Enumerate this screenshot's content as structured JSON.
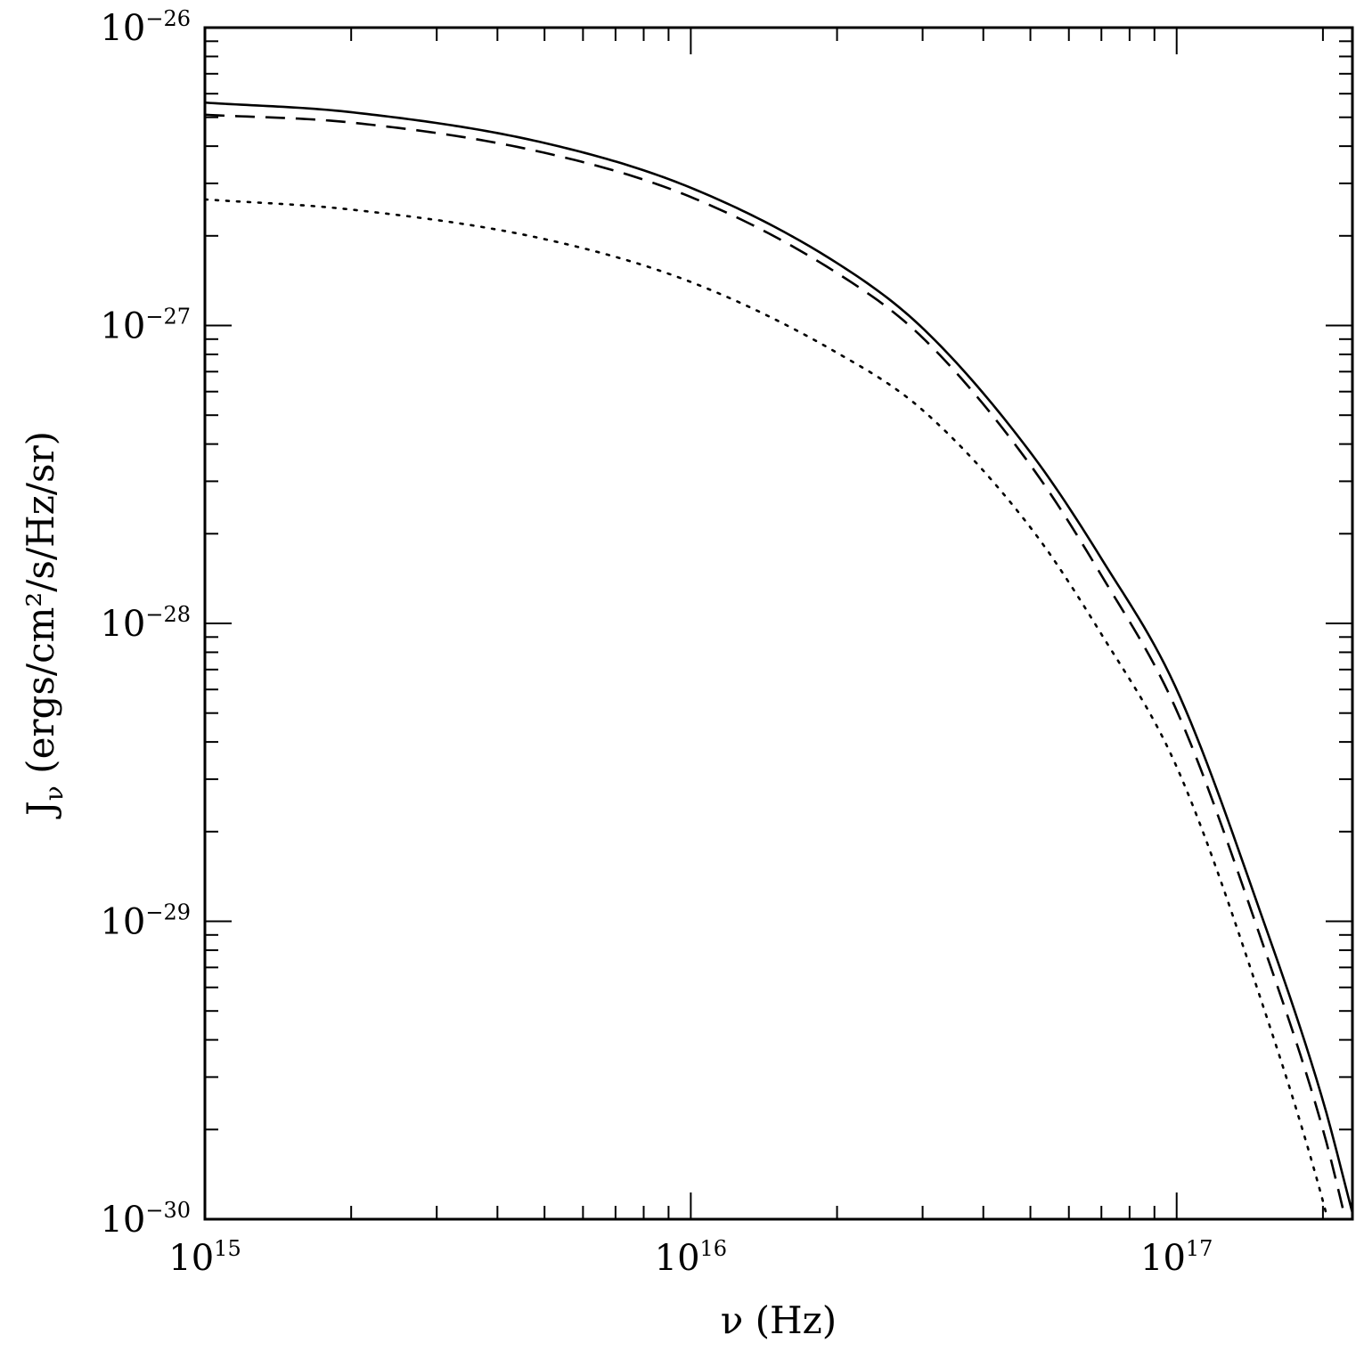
{
  "chart_data": {
    "type": "line",
    "title": "",
    "xlabel": "ν (Hz)",
    "ylabel_main": "J",
    "ylabel_sub": "ν",
    "ylabel_rest": " (ergs/cm²/s/Hz/sr)",
    "xscale": "log",
    "yscale": "log",
    "xlim": [
      1000000000000000.0,
      2.3e+17
    ],
    "ylim": [
      1e-30,
      1e-26
    ],
    "grid": false,
    "legend": "none",
    "x_ticks": [
      {
        "value": 1000000000000000.0,
        "base": "10",
        "exp": "15"
      },
      {
        "value": 1e+16,
        "base": "10",
        "exp": "16"
      },
      {
        "value": 1e+17,
        "base": "10",
        "exp": "17"
      }
    ],
    "y_ticks": [
      {
        "value": 1e-26,
        "base": "10",
        "exp": "−26"
      },
      {
        "value": 1e-27,
        "base": "10",
        "exp": "−27"
      },
      {
        "value": 1e-28,
        "base": "10",
        "exp": "−28"
      },
      {
        "value": 1e-29,
        "base": "10",
        "exp": "−29"
      },
      {
        "value": 1e-30,
        "base": "10",
        "exp": "−30"
      }
    ],
    "series": [
      {
        "style": "solid",
        "x": [
          1000000000000000.0,
          2000000000000000.0,
          5000000000000000.0,
          1e+16,
          2e+16,
          3e+16,
          5e+16,
          7e+16,
          1e+17,
          1.5e+17,
          2e+17,
          2.3e+17
        ],
        "y": [
          5.6e-27,
          5.2e-27,
          4.1e-27,
          2.9e-27,
          1.62e-27,
          9.8e-28,
          3.75e-28,
          1.65e-28,
          6e-29,
          1.03e-29,
          2.5e-30,
          1.05e-30
        ]
      },
      {
        "style": "dashed",
        "x": [
          1000000000000000.0,
          2000000000000000.0,
          5000000000000000.0,
          1e+16,
          2e+16,
          3e+16,
          5e+16,
          7e+16,
          1e+17,
          1.5e+17,
          2e+17,
          2.3e+17
        ],
        "y": [
          5.1e-27,
          4.8e-27,
          3.8e-27,
          2.7e-27,
          1.5e-27,
          9.1e-28,
          3.4e-28,
          1.45e-28,
          5.1e-29,
          8.5e-30,
          2e-30,
          8e-31
        ]
      },
      {
        "style": "dotted",
        "x": [
          1000000000000000.0,
          2000000000000000.0,
          5000000000000000.0,
          1e+16,
          2e+16,
          3e+16,
          5e+16,
          7e+16,
          1e+17,
          1.5e+17,
          2e+17,
          2.3e+17
        ],
        "y": [
          2.65e-27,
          2.45e-27,
          1.95e-27,
          1.4e-27,
          8.1e-28,
          5.2e-28,
          2.1e-28,
          9.2e-29,
          3.3e-29,
          5.3e-30,
          1.15e-30,
          4.5e-31
        ]
      }
    ]
  }
}
